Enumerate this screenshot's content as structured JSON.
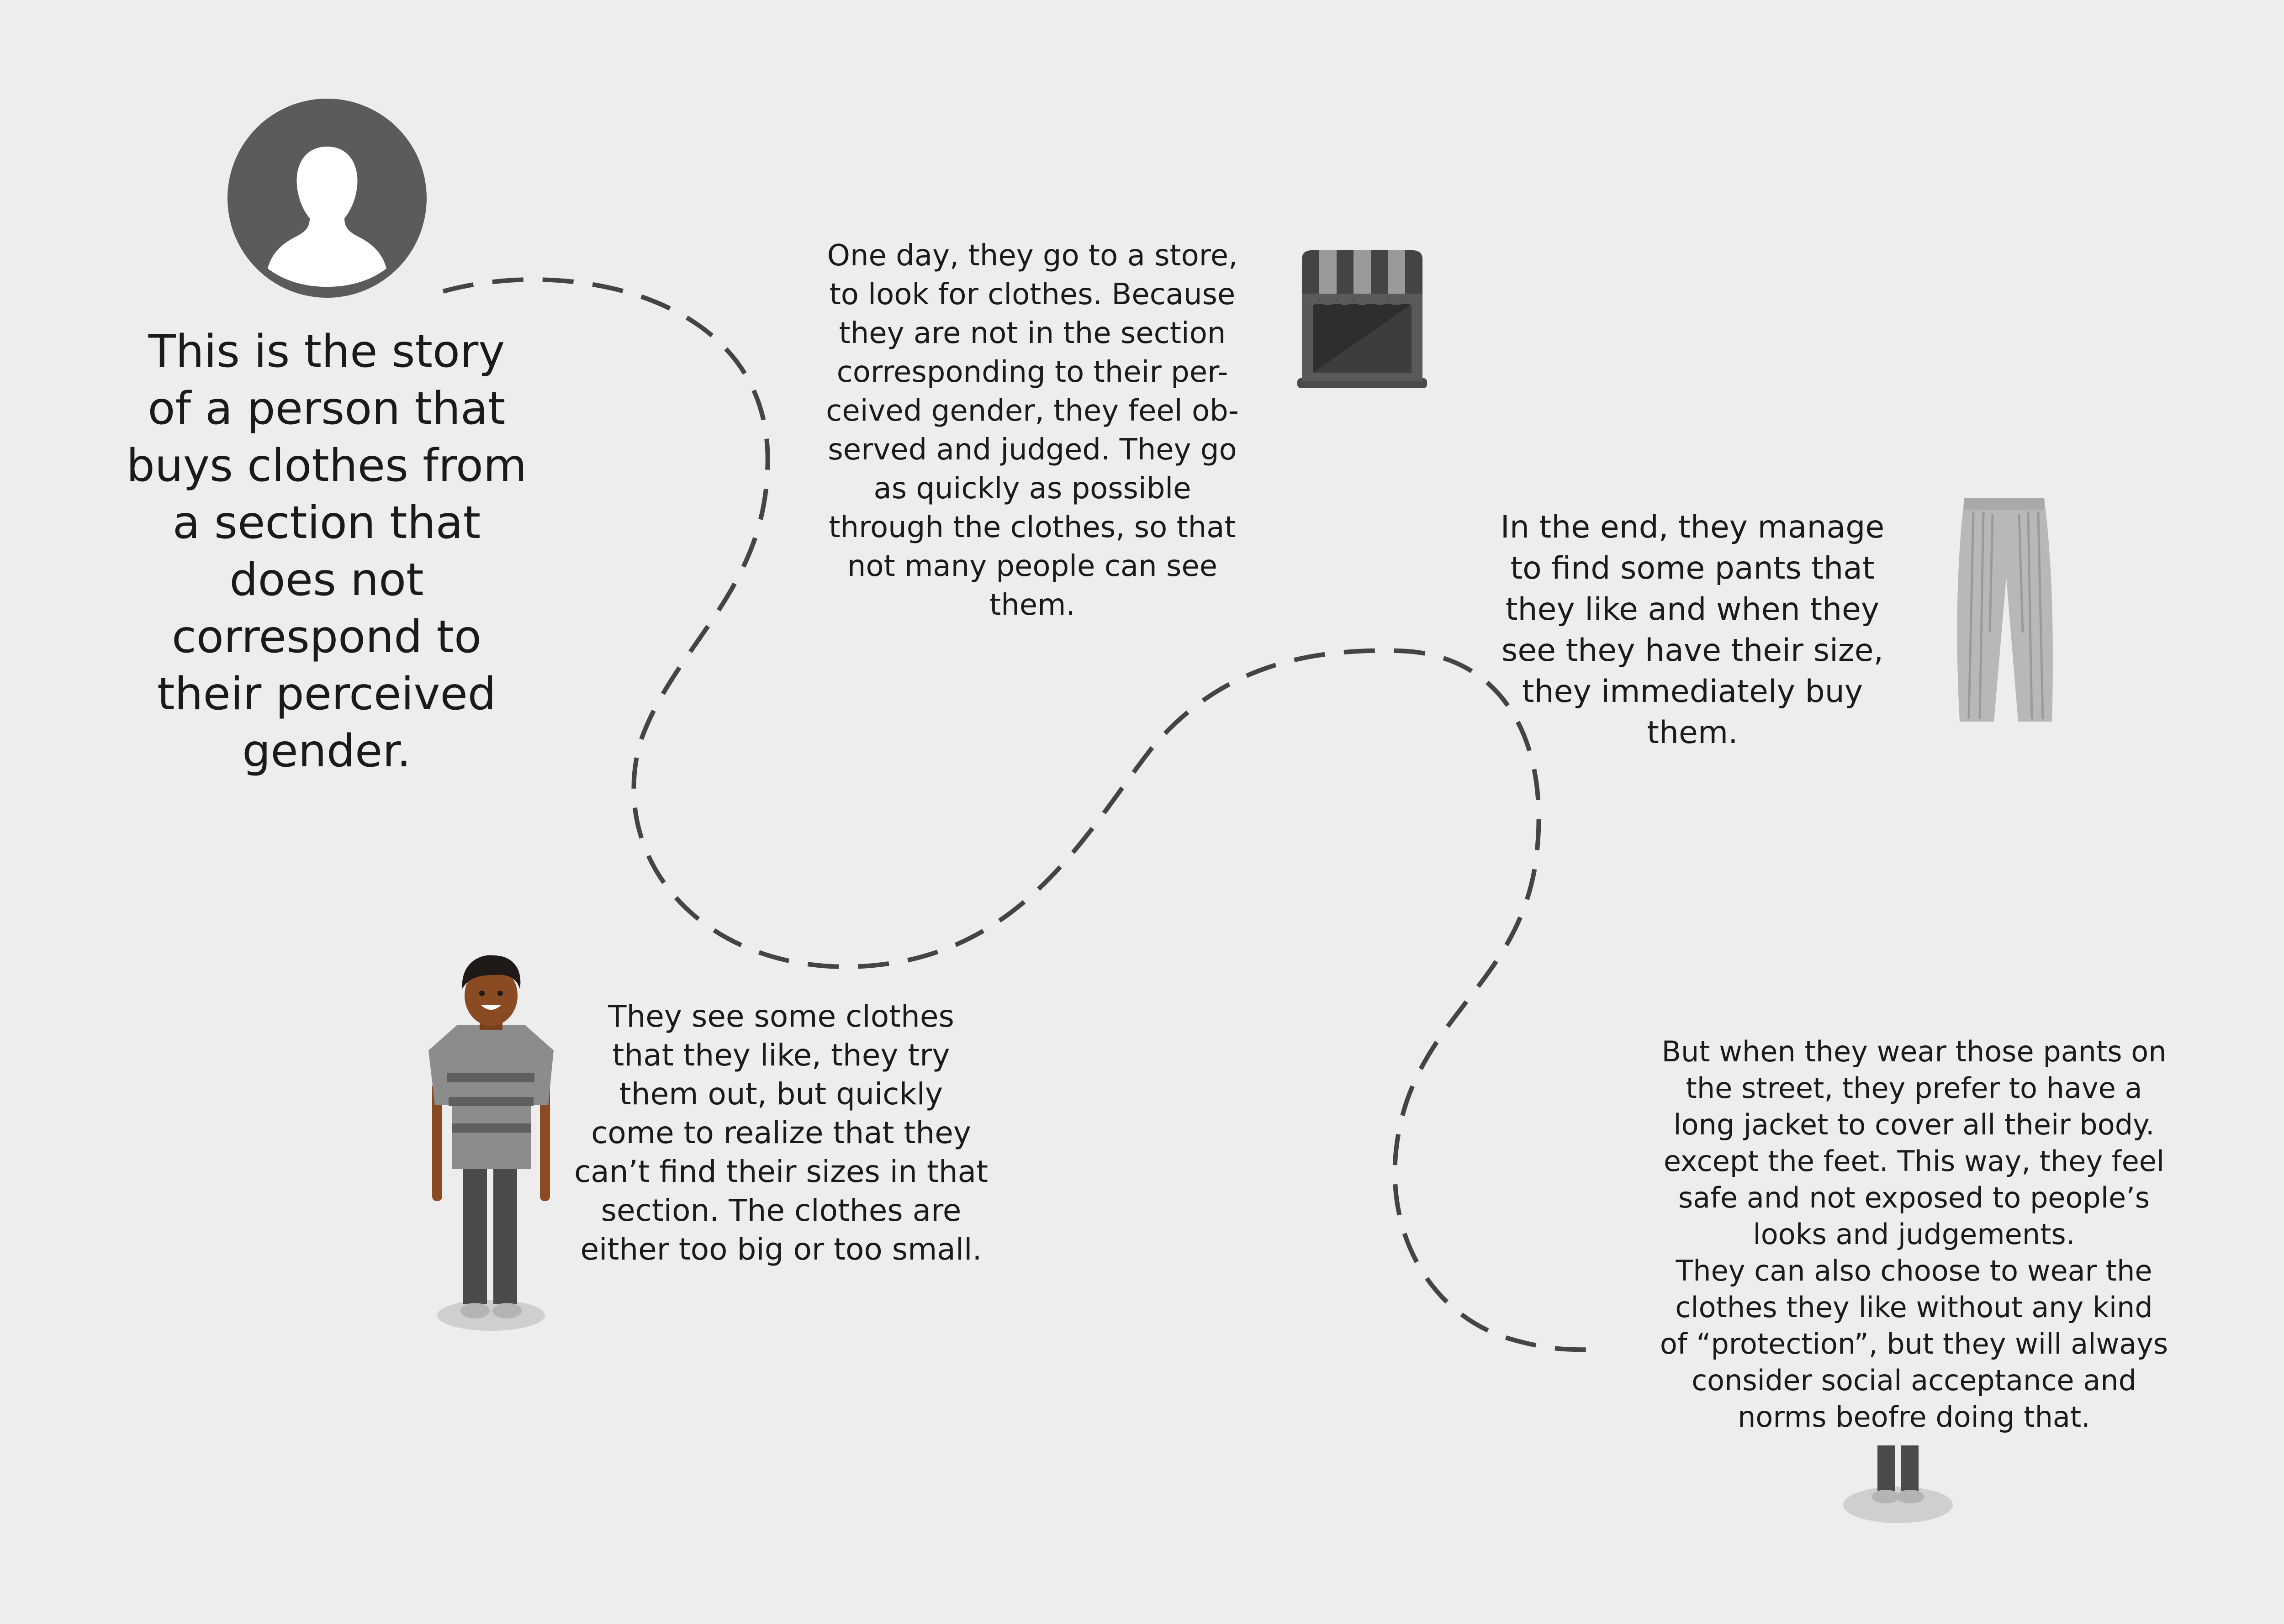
{
  "story": {
    "intro": "This is the story\nof a person that\nbuys clothes from\na section that\ndoes not\ncorrespond to\ntheir perceived\ngender.",
    "store": "One day, they go to a store,\nto look for clothes. Because\nthey are not in the section\ncorresponding to their per-\nceived gender, they feel ob-\nserved and judged. They go\nas quickly as possible\nthrough the clothes, so that\nnot many people can see\nthem.",
    "pants": "In the end, they manage\nto find some pants that\nthey like and when they\nsee they have their size,\nthey immediately buy\nthem.",
    "trying": "They see some clothes\nthat they like, they try\nthem out, but quickly\ncome to realize that they\ncan’t find their sizes in that\nsection. The clothes are\neither too big or too small.",
    "street": "But when they wear those pants on\nthe street, they prefer to have a\nlong jacket to cover all their body.\nexcept the feet. This way, they feel\nsafe and not exposed to people’s\nlooks and judgements.\nThey can also choose to wear the\nclothes they like without any kind\nof “protection”, but they will always\nconsider social acceptance and\nnorms beofre doing that."
  },
  "icons": {
    "avatar": "user-avatar-icon",
    "store": "storefront-icon",
    "pants": "pants-icon",
    "person": "person-figure",
    "feet": "feet-figure"
  },
  "colors": {
    "background": "#ededed",
    "path": "#444444",
    "text": "#1a1a1a",
    "avatar": "#5b5b5b",
    "skin": "#8a4a22",
    "shirt": "#8c8c8c",
    "pants": "#4a4a4a"
  }
}
